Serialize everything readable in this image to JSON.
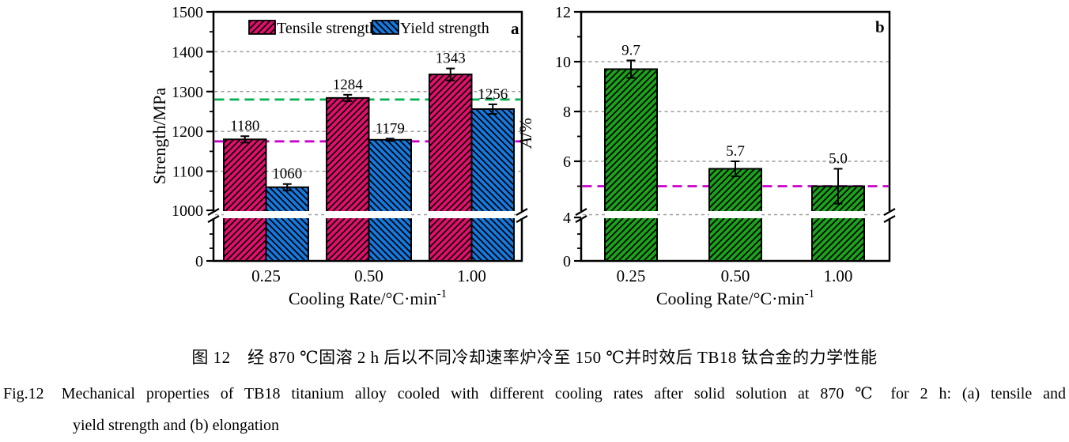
{
  "captions": {
    "zh": "图 12　经 870 ℃固溶 2 h 后以不同冷却速率炉冷至 150 ℃并时效后 TB18 钛合金的力学性能",
    "en_label": "Fig.12",
    "en_line1": "Mechanical properties of TB18 titanium alloy cooled with different cooling rates after solid solution at 870 ℃ for 2 h: (a) tensile and",
    "en_line2": "yield strength and (b) elongation"
  },
  "colors": {
    "tensile": "#e60d6f",
    "yield": "#157ae0",
    "elongation": "#1aa41a",
    "ref_green": "#00b050",
    "ref_magenta": "#cc00cc",
    "grid": "#9b9b9b",
    "axis": "#000000",
    "background": "#ffffff"
  },
  "chart_data": [
    {
      "type": "bar",
      "panel_label": "a",
      "xlabel": "Cooling Rate/°C·min⁻¹",
      "ylabel": "Strength/MPa",
      "categories": [
        "0.25",
        "0.50",
        "1.00"
      ],
      "series": [
        {
          "name": "Tensile strength",
          "color": "#e60d6f",
          "hatch": "/",
          "values": [
            1180,
            1284,
            1343
          ],
          "errors": [
            8,
            8,
            15
          ],
          "labels": [
            "1180",
            "1284",
            "1343"
          ]
        },
        {
          "name": "Yield strength",
          "color": "#157ae0",
          "hatch": "\\",
          "values": [
            1060,
            1179,
            1256
          ],
          "errors": [
            8,
            3,
            12
          ],
          "labels": [
            "1060",
            "1179",
            "1256"
          ]
        }
      ],
      "y_axis": {
        "range_upper": [
          1000,
          1500
        ],
        "range_lower": [
          0,
          1000
        ],
        "break_at": 1000,
        "major_ticks": [
          0,
          1000,
          1100,
          1200,
          1300,
          1400,
          1500
        ],
        "minor_ticks": [
          1050,
          1150,
          1250,
          1350,
          1450
        ],
        "gridlines": [
          1100,
          1200,
          1300,
          1400
        ],
        "grid_style": "dashed"
      },
      "reference_lines": [
        {
          "value": 1280,
          "color": "#00b050",
          "style": "dashed"
        },
        {
          "value": 1175,
          "color": "#cc00cc",
          "style": "dashed"
        }
      ],
      "legend": {
        "position": "top-inside",
        "entries": [
          "Tensile strength",
          "Yield strength"
        ]
      }
    },
    {
      "type": "bar",
      "panel_label": "b",
      "xlabel": "Cooling Rate/°C·min⁻¹",
      "ylabel": "A/%",
      "categories": [
        "0.25",
        "0.50",
        "1.00"
      ],
      "series": [
        {
          "name": "Elongation",
          "color": "#1aa41a",
          "hatch": "/",
          "values": [
            9.7,
            5.7,
            5.0
          ],
          "errors": [
            0.35,
            0.3,
            0.7
          ],
          "labels": [
            "9.7",
            "5.7",
            "5.0"
          ]
        }
      ],
      "y_axis": {
        "range_upper": [
          4,
          12
        ],
        "range_lower": [
          0,
          4
        ],
        "break_at": 4,
        "major_ticks": [
          0,
          4,
          6,
          8,
          10,
          12
        ],
        "minor_ticks": [
          5,
          7,
          9,
          11
        ],
        "gridlines": [
          6,
          8,
          10
        ],
        "grid_style": "dashed"
      },
      "reference_lines": [
        {
          "value": 5.0,
          "color": "#cc00cc",
          "style": "dashed"
        }
      ]
    }
  ]
}
